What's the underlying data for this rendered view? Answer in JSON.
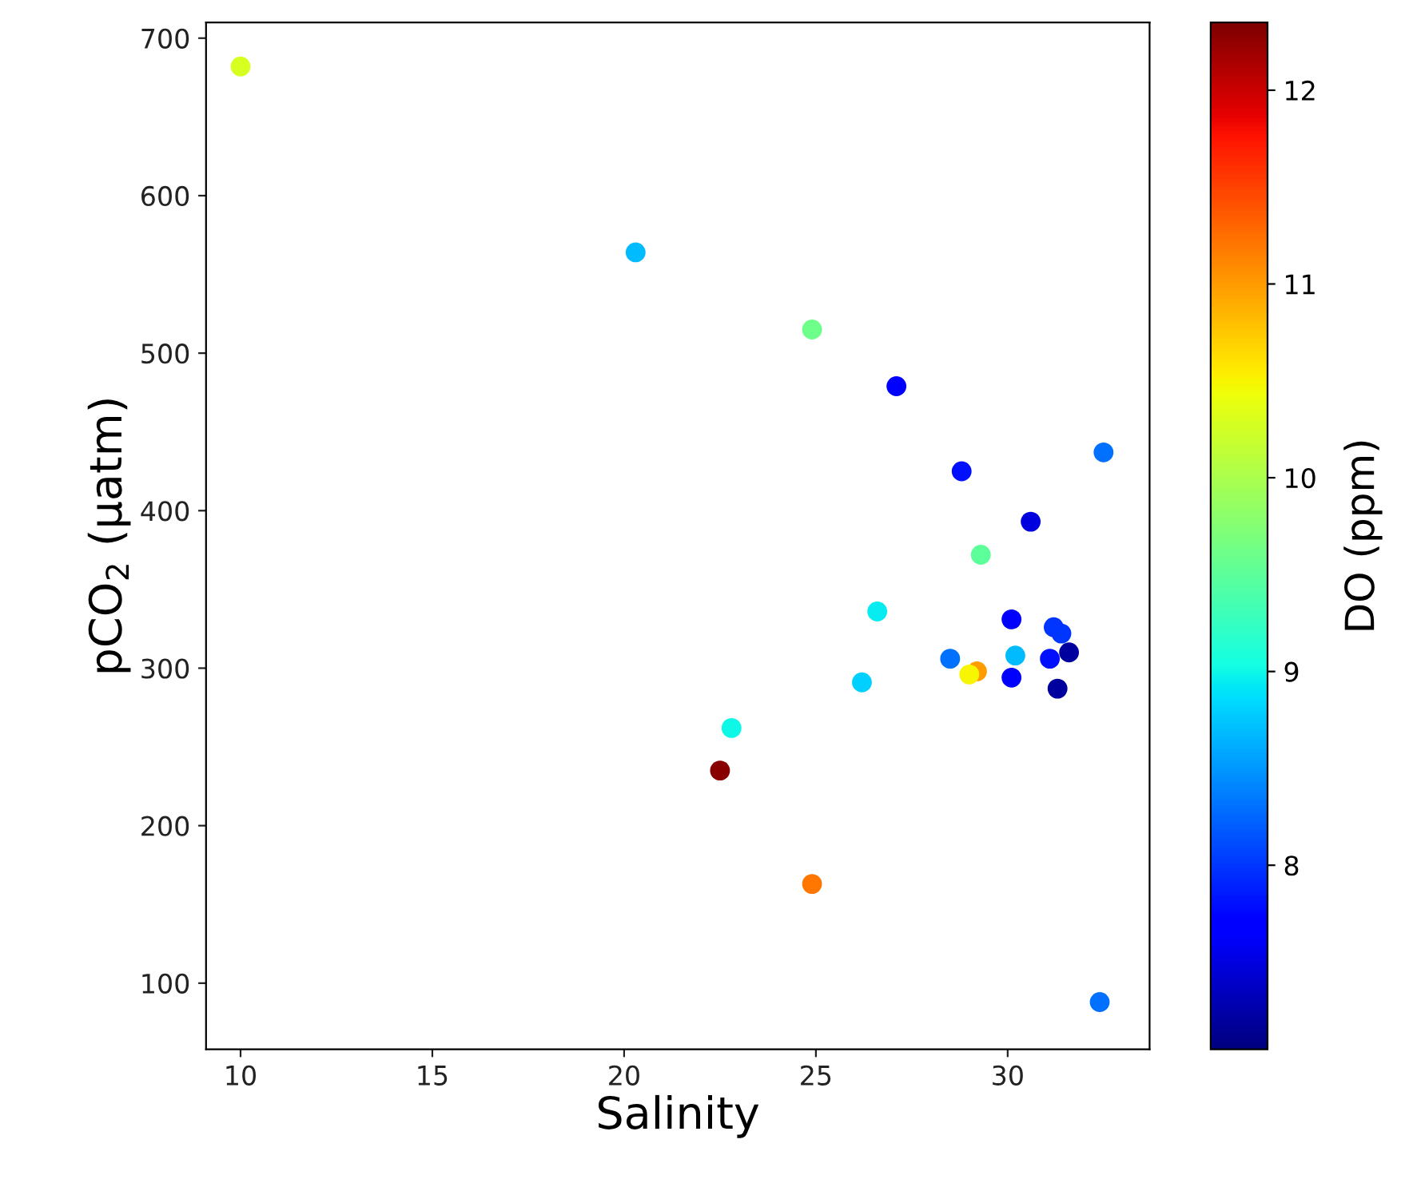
{
  "chart_data": {
    "type": "scatter",
    "xlabel": "Salinity",
    "ylabel": "pCO$_{2}$ (µatm)",
    "clabel": "DO (ppm)",
    "x": [
      10.0,
      20.3,
      24.9,
      27.1,
      28.8,
      32.5,
      30.6,
      29.3,
      26.6,
      30.1,
      31.2,
      31.4,
      31.6,
      28.5,
      30.2,
      31.1,
      29.2,
      29.0,
      30.1,
      31.3,
      26.2,
      22.8,
      22.5,
      24.9,
      32.4
    ],
    "values": [
      682,
      564,
      515,
      479,
      425,
      437,
      393,
      372,
      336,
      331,
      326,
      322,
      310,
      306,
      308,
      306,
      298,
      296,
      294,
      287,
      291,
      262,
      235,
      163,
      88
    ],
    "cvalues": [
      10.3,
      8.7,
      9.6,
      7.7,
      7.8,
      8.3,
      7.5,
      9.5,
      8.95,
      7.7,
      8.0,
      8.0,
      7.2,
      8.3,
      8.7,
      7.8,
      11.0,
      10.5,
      7.7,
      7.2,
      8.8,
      9.0,
      12.3,
      11.2,
      8.3
    ],
    "xlim": [
      9.1,
      33.7
    ],
    "ylim": [
      58,
      710
    ],
    "xticks": [
      10,
      15,
      20,
      25,
      30
    ],
    "yticks": [
      100,
      200,
      300,
      400,
      500,
      600,
      700
    ],
    "clim": [
      7.05,
      12.35
    ],
    "cticks": [
      8,
      9,
      10,
      11,
      12
    ],
    "marker": "circle",
    "grid": false
  }
}
